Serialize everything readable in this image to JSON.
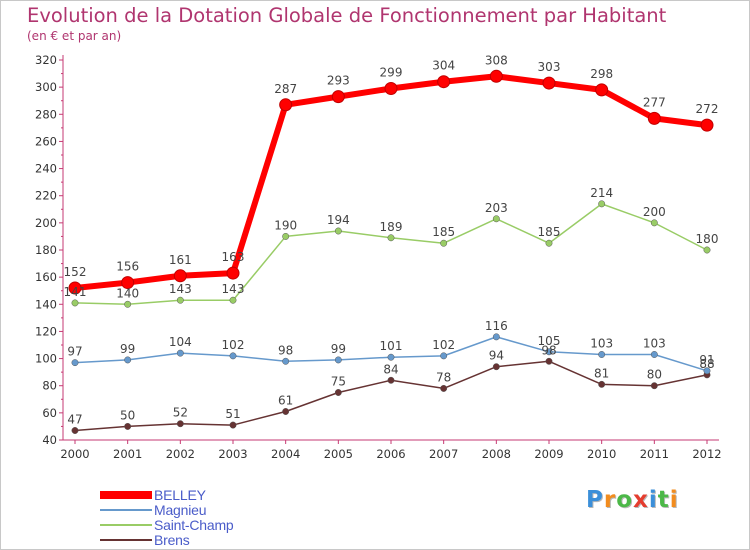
{
  "chart_data": {
    "type": "line",
    "title": "Evolution de la Dotation Globale de Fonctionnement par Habitant",
    "subtitle": "(en € et par an)",
    "xlabel": "",
    "ylabel": "",
    "ylim": [
      40,
      320
    ],
    "yticks": [
      40,
      60,
      80,
      100,
      120,
      140,
      160,
      180,
      200,
      220,
      240,
      260,
      280,
      300,
      320
    ],
    "grid": false,
    "legend_position": "bottom-left",
    "categories": [
      "2000",
      "2001",
      "2002",
      "2003",
      "2004",
      "2005",
      "2006",
      "2007",
      "2008",
      "2009",
      "2010",
      "2011",
      "2012"
    ],
    "series": [
      {
        "name": "BELLEY",
        "color": "#ff0000",
        "values": [
          152,
          156,
          161,
          163,
          287,
          293,
          299,
          304,
          308,
          303,
          298,
          277,
          272
        ]
      },
      {
        "name": "Magnieu",
        "color": "#6699cc",
        "values": [
          97,
          99,
          104,
          102,
          98,
          99,
          101,
          102,
          116,
          105,
          103,
          103,
          91
        ]
      },
      {
        "name": "Saint-Champ",
        "color": "#99cc66",
        "values": [
          141,
          140,
          143,
          143,
          190,
          194,
          189,
          185,
          203,
          185,
          214,
          200,
          180
        ]
      },
      {
        "name": "Brens",
        "color": "#663333",
        "values": [
          47,
          50,
          52,
          51,
          61,
          75,
          84,
          78,
          94,
          98,
          81,
          80,
          88
        ]
      }
    ]
  },
  "logo": {
    "letters": [
      "P",
      "r",
      "o",
      "x",
      "i",
      "t",
      "i"
    ],
    "colors": [
      "#3b8fd9",
      "#f28c1e",
      "#4cb848",
      "#e53d2f",
      "#3b8fd9",
      "#4cb848",
      "#f28c1e"
    ]
  }
}
